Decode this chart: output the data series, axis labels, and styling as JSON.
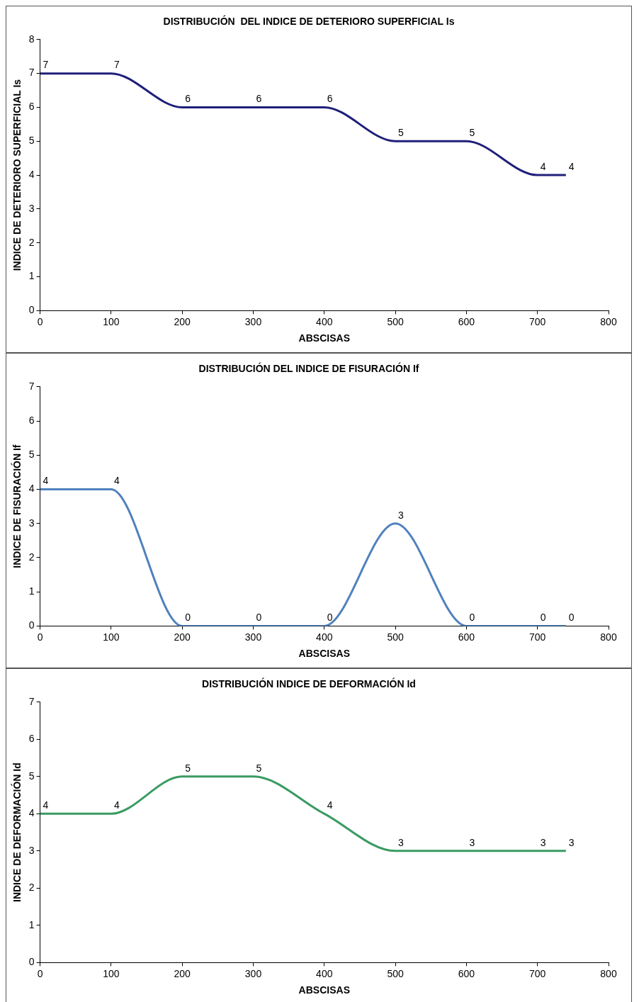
{
  "chart_data": [
    {
      "type": "line",
      "title": "DISTRIBUCIÓN  DEL INDICE DE DETERIORO SUPERFICIAL Is",
      "xlabel": "ABSCISAS",
      "ylabel": "INDICE DE DETERIORO SUPERFICIAL Is",
      "x": [
        0,
        100,
        200,
        300,
        400,
        500,
        600,
        700,
        740
      ],
      "series": [
        {
          "color": "#1f1f7a",
          "values": [
            7,
            7,
            6,
            6,
            6,
            5,
            5,
            4,
            4
          ]
        }
      ],
      "xlim": [
        0,
        800
      ],
      "xticks": [
        0,
        100,
        200,
        300,
        400,
        500,
        600,
        700,
        800
      ],
      "ylim": [
        0,
        8
      ],
      "yticks": [
        0,
        1,
        2,
        3,
        4,
        5,
        6,
        7,
        8
      ],
      "grid": false,
      "legend": false,
      "marker": "none",
      "data_labels": true
    },
    {
      "type": "line",
      "title": "DISTRIBUCIÓN DEL INDICE DE FISURACIÓN If",
      "xlabel": "ABSCISAS",
      "ylabel": "INDICE DE FISURACIÓN If",
      "x": [
        0,
        100,
        200,
        300,
        400,
        500,
        600,
        700,
        740
      ],
      "series": [
        {
          "color": "#4f81bd",
          "values": [
            4,
            4,
            0,
            0,
            0,
            3,
            0,
            0,
            0
          ]
        }
      ],
      "xlim": [
        0,
        800
      ],
      "xticks": [
        0,
        100,
        200,
        300,
        400,
        500,
        600,
        700,
        800
      ],
      "ylim": [
        0,
        7
      ],
      "yticks": [
        0,
        1,
        2,
        3,
        4,
        5,
        6,
        7
      ],
      "grid": false,
      "legend": false,
      "marker": "none",
      "data_labels": true
    },
    {
      "type": "line",
      "title": "DISTRIBUCIÓN INDICE DE DEFORMACIÓN Id",
      "xlabel": "ABSCISAS",
      "ylabel": "INDICE DE DEFORMACIÓN Id",
      "x": [
        0,
        100,
        200,
        300,
        400,
        500,
        600,
        700,
        740
      ],
      "series": [
        {
          "color": "#3a9b62",
          "values": [
            4,
            4,
            5,
            5,
            4,
            3,
            3,
            3,
            3
          ]
        }
      ],
      "xlim": [
        0,
        800
      ],
      "xticks": [
        0,
        100,
        200,
        300,
        400,
        500,
        600,
        700,
        800
      ],
      "ylim": [
        0,
        7
      ],
      "yticks": [
        0,
        1,
        2,
        3,
        4,
        5,
        6,
        7
      ],
      "grid": false,
      "legend": false,
      "marker": "none",
      "data_labels": true
    }
  ]
}
